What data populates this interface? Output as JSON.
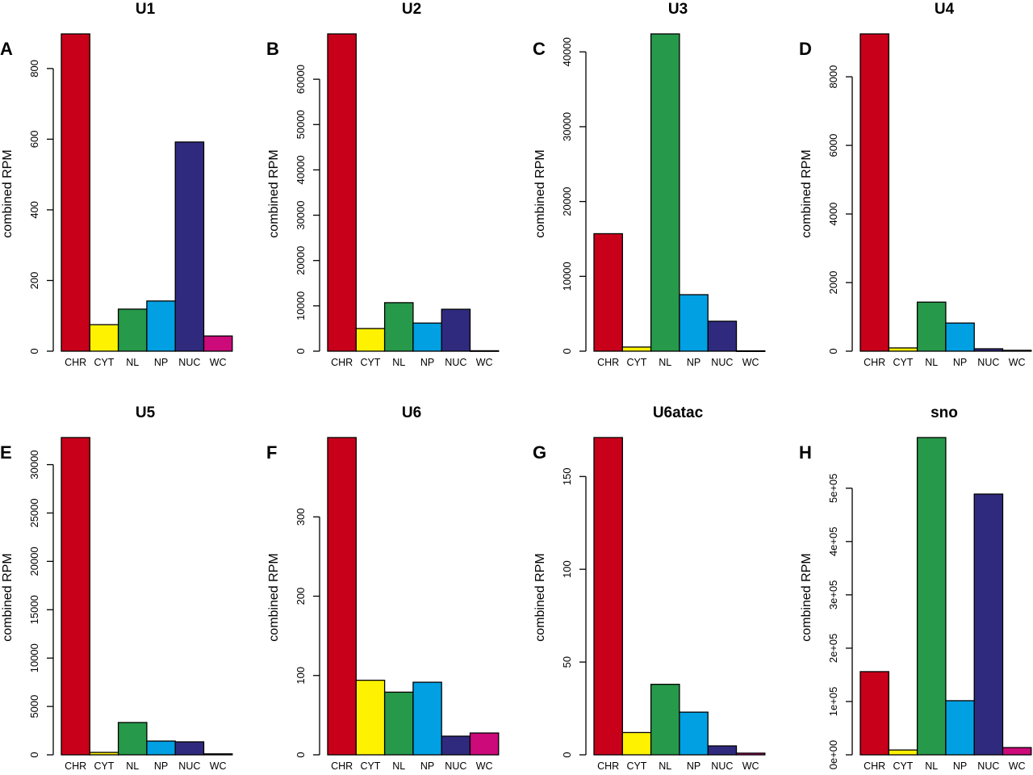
{
  "colors": [
    "#c8001a",
    "#fff200",
    "#27994a",
    "#00a0e3",
    "#302a7e",
    "#cc0a7a"
  ],
  "chart_data": [
    {
      "type": "bar",
      "panel": "A",
      "title": "U1",
      "ylabel": "combined RPM",
      "categories": [
        "CHR",
        "CYT",
        "NL",
        "NP",
        "NUC",
        "WC"
      ],
      "values": [
        898,
        75,
        119,
        142,
        592,
        43
      ],
      "yticks": [
        0,
        200,
        400,
        600,
        800
      ],
      "tick_labels": [
        "0",
        "200",
        "400",
        "600",
        "800"
      ],
      "ylim": [
        0,
        898
      ],
      "grid": false
    },
    {
      "type": "bar",
      "panel": "B",
      "title": "U2",
      "ylabel": "combined RPM",
      "categories": [
        "CHR",
        "CYT",
        "NL",
        "NP",
        "NUC",
        "WC"
      ],
      "values": [
        70000,
        5000,
        10700,
        6200,
        9250,
        100
      ],
      "yticks": [
        0,
        10000,
        20000,
        30000,
        40000,
        50000,
        60000
      ],
      "tick_labels": [
        "0",
        "10000",
        "20000",
        "30000",
        "40000",
        "50000",
        "60000"
      ],
      "ylim": [
        0,
        70000
      ],
      "grid": false
    },
    {
      "type": "bar",
      "panel": "C",
      "title": "U3",
      "ylabel": "combined RPM",
      "categories": [
        "CHR",
        "CYT",
        "NL",
        "NP",
        "NUC",
        "WC"
      ],
      "values": [
        15700,
        550,
        42400,
        7550,
        4000,
        50
      ],
      "yticks": [
        0,
        10000,
        20000,
        30000,
        40000
      ],
      "tick_labels": [
        "0",
        "10000",
        "20000",
        "30000",
        "40000"
      ],
      "ylim": [
        0,
        42400
      ],
      "grid": false
    },
    {
      "type": "bar",
      "panel": "D",
      "title": "U4",
      "ylabel": "combined RPM",
      "categories": [
        "CHR",
        "CYT",
        "NL",
        "NP",
        "NUC",
        "WC"
      ],
      "values": [
        9250,
        95,
        1430,
        820,
        70,
        25
      ],
      "yticks": [
        0,
        2000,
        4000,
        6000,
        8000
      ],
      "tick_labels": [
        "0",
        "2000",
        "4000",
        "6000",
        "8000"
      ],
      "ylim": [
        0,
        9250
      ],
      "grid": false
    },
    {
      "type": "bar",
      "panel": "E",
      "title": "U5",
      "ylabel": "combined RPM",
      "categories": [
        "CHR",
        "CYT",
        "NL",
        "NP",
        "NUC",
        "WC"
      ],
      "values": [
        32800,
        250,
        3340,
        1420,
        1340,
        100
      ],
      "yticks": [
        0,
        5000,
        10000,
        15000,
        20000,
        25000,
        30000
      ],
      "tick_labels": [
        "0",
        "5000",
        "10000",
        "15000",
        "20000",
        "25000",
        "30000"
      ],
      "ylim": [
        0,
        32800
      ],
      "grid": false
    },
    {
      "type": "bar",
      "panel": "F",
      "title": "U6",
      "ylabel": "combined RPM",
      "categories": [
        "CHR",
        "CYT",
        "NL",
        "NP",
        "NUC",
        "WC"
      ],
      "values": [
        400,
        94,
        79,
        91.5,
        23.5,
        27.5
      ],
      "yticks": [
        0,
        100,
        200,
        300
      ],
      "tick_labels": [
        "0",
        "100",
        "200",
        "300"
      ],
      "ylim": [
        0,
        400
      ],
      "grid": false
    },
    {
      "type": "bar",
      "panel": "G",
      "title": "U6atac",
      "ylabel": "combined RPM",
      "categories": [
        "CHR",
        "CYT",
        "NL",
        "NP",
        "NUC",
        "WC"
      ],
      "values": [
        171,
        12,
        38,
        23,
        4.8,
        0.9
      ],
      "yticks": [
        0,
        50,
        100,
        150
      ],
      "tick_labels": [
        "0",
        "50",
        "100",
        "150"
      ],
      "ylim": [
        0,
        171
      ],
      "grid": false
    },
    {
      "type": "bar",
      "panel": "H",
      "title": "sno",
      "ylabel": "combined RPM",
      "categories": [
        "CHR",
        "CYT",
        "NL",
        "NP",
        "NUC",
        "WC"
      ],
      "values": [
        156000,
        9000,
        595000,
        101500,
        489000,
        13600
      ],
      "yticks": [
        0,
        100000,
        200000,
        300000,
        400000,
        500000
      ],
      "tick_labels": [
        "0e+00",
        "1e+05",
        "2e+05",
        "3e+05",
        "4e+05",
        "5e+05"
      ],
      "ylim": [
        0,
        595000
      ],
      "grid": false
    }
  ]
}
